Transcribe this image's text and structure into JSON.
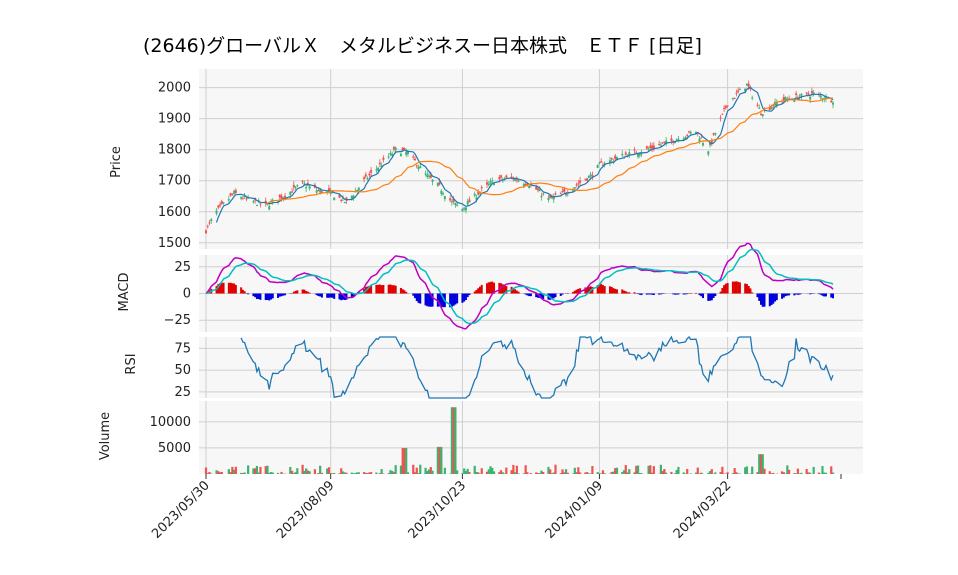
{
  "title": "(2646)グローバルＸ　メタルビジネスー日本株式　ＥＴＦ [日足]",
  "colors": {
    "up": "#3cb371",
    "down": "#ef5350",
    "sma_short": "#1f77b4",
    "sma_long": "#ff7f0e",
    "macd": "#bf00bf",
    "signal": "#00bfbf",
    "hist_up": "#e00000",
    "hist_down": "#0000dd",
    "rsi": "#1f77b4",
    "panel_bg": "#f7f7f7",
    "grid": "#cfcfcf"
  },
  "chart_data": [
    {
      "type": "candlestick",
      "panel": "price",
      "ylabel": "Price",
      "ylim": [
        1480,
        2060
      ],
      "yticks": [
        1500,
        1600,
        1700,
        1800,
        1900,
        2000
      ],
      "x_range": [
        "2023/05/30",
        "2024/05/21"
      ],
      "keypoints": [
        {
          "date": "2023/05/30",
          "close": 1540
        },
        {
          "date": "2023/06/05",
          "close": 1600
        },
        {
          "date": "2023/06/15",
          "close": 1660
        },
        {
          "date": "2023/06/22",
          "close": 1640
        },
        {
          "date": "2023/07/03",
          "close": 1620
        },
        {
          "date": "2023/07/13",
          "close": 1650
        },
        {
          "date": "2023/07/24",
          "close": 1690
        },
        {
          "date": "2023/08/01",
          "close": 1670
        },
        {
          "date": "2023/08/09",
          "close": 1660
        },
        {
          "date": "2023/08/18",
          "close": 1630
        },
        {
          "date": "2023/08/28",
          "close": 1700
        },
        {
          "date": "2023/09/08",
          "close": 1760
        },
        {
          "date": "2023/09/15",
          "close": 1800
        },
        {
          "date": "2023/09/22",
          "close": 1790
        },
        {
          "date": "2023/10/02",
          "close": 1720
        },
        {
          "date": "2023/10/10",
          "close": 1680
        },
        {
          "date": "2023/10/17",
          "close": 1630
        },
        {
          "date": "2023/10/23",
          "close": 1610
        },
        {
          "date": "2023/11/01",
          "close": 1660
        },
        {
          "date": "2023/11/10",
          "close": 1700
        },
        {
          "date": "2023/11/20",
          "close": 1710
        },
        {
          "date": "2023/11/30",
          "close": 1690
        },
        {
          "date": "2023/12/11",
          "close": 1640
        },
        {
          "date": "2023/12/20",
          "close": 1660
        },
        {
          "date": "2024/01/05",
          "close": 1720
        },
        {
          "date": "2024/01/09",
          "close": 1750
        },
        {
          "date": "2024/01/22",
          "close": 1780
        },
        {
          "date": "2024/02/05",
          "close": 1800
        },
        {
          "date": "2024/02/20",
          "close": 1830
        },
        {
          "date": "2024/03/04",
          "close": 1860
        },
        {
          "date": "2024/03/11",
          "close": 1800
        },
        {
          "date": "2024/03/22",
          "close": 1950
        },
        {
          "date": "2024/04/02",
          "close": 2010
        },
        {
          "date": "2024/04/10",
          "close": 1920
        },
        {
          "date": "2024/04/22",
          "close": 1960
        },
        {
          "date": "2024/05/01",
          "close": 1970
        },
        {
          "date": "2024/05/10",
          "close": 1980
        },
        {
          "date": "2024/05/21",
          "close": 1960
        }
      ],
      "series": [
        {
          "name": "SMA short",
          "kind": "line"
        },
        {
          "name": "SMA long",
          "kind": "line"
        }
      ]
    },
    {
      "type": "line",
      "panel": "macd",
      "ylabel": "MACD",
      "ylim": [
        -36,
        36
      ],
      "yticks": [
        -25,
        0,
        25
      ],
      "series": [
        {
          "name": "MACD",
          "kind": "line"
        },
        {
          "name": "Signal",
          "kind": "line"
        },
        {
          "name": "Histogram",
          "kind": "bar"
        }
      ]
    },
    {
      "type": "line",
      "panel": "rsi",
      "ylabel": "RSI",
      "ylim": [
        18,
        88
      ],
      "yticks": [
        25,
        50,
        75
      ]
    },
    {
      "type": "bar",
      "panel": "volume",
      "ylabel": "Volume",
      "ylim": [
        0,
        14000
      ],
      "yticks": [
        5000,
        10000
      ],
      "notable": [
        {
          "date": "2023/10/18",
          "value": 12800
        },
        {
          "date": "2023/09/20",
          "value": 5000
        },
        {
          "date": "2023/10/10",
          "value": 5200
        },
        {
          "date": "2024/04/10",
          "value": 3800
        }
      ]
    }
  ],
  "xaxis": {
    "ticks": [
      "2023/05/30",
      "2023/08/09",
      "2023/10/23",
      "2024/01/09",
      "2024/03/22"
    ]
  }
}
